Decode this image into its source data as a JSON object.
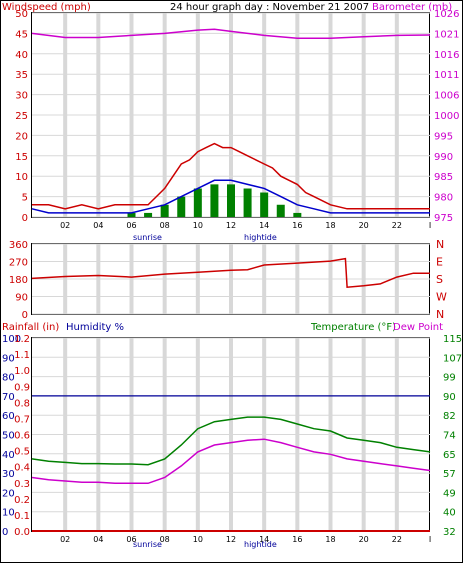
{
  "header": {
    "left_label": "Windspeed (mph)",
    "title": "24 hour graph day : November 21 2007",
    "right_label": "Barometer (mb)"
  },
  "footer_markers": {
    "sunrise": "sunrise",
    "hightide": "hightide"
  },
  "bottom_header": {
    "rainfall_label": "Rainfall (in)",
    "humidity_label": "Humidity %",
    "temperature_label": "Temperature (°F)",
    "dewpoint_label": "Dew Point"
  },
  "x_ticks": [
    "02",
    "04",
    "06",
    "08",
    "10",
    "12",
    "14",
    "16",
    "18",
    "20",
    "22",
    "I"
  ],
  "colors": {
    "wind": "#cc0000",
    "avg_wind": "#0000cc",
    "gust_green": "#008000",
    "barometer": "#cc00cc",
    "direction": "#cc0000",
    "temperature": "#008000",
    "dewpoint": "#cc00cc",
    "humidity": "#000099",
    "rainfall": "#cc0000"
  },
  "chart_data": [
    {
      "type": "line",
      "x_range": [
        0,
        24
      ],
      "left_axis": {
        "ticks": [
          0,
          5,
          10,
          15,
          20,
          25,
          30,
          35,
          40,
          45,
          50
        ],
        "range": [
          0,
          50
        ]
      },
      "right_axis": {
        "ticks": [
          975,
          980,
          985,
          990,
          995,
          1000,
          1006,
          1011,
          1016,
          1021,
          1026
        ],
        "range": [
          975,
          1026
        ]
      },
      "series": [
        {
          "x": [
            0,
            1,
            2,
            3,
            4,
            5,
            6,
            7,
            7.5,
            8,
            8.5,
            9,
            9.5,
            10,
            10.5,
            11,
            11.5,
            12,
            12.5,
            13,
            13.5,
            14,
            14.5,
            15,
            15.5,
            16,
            16.5,
            17,
            18,
            19,
            20,
            21,
            22,
            23,
            24
          ],
          "values": [
            3,
            3,
            2,
            3,
            2,
            3,
            3,
            3,
            5,
            7,
            10,
            13,
            14,
            16,
            17,
            18,
            17,
            17,
            16,
            15,
            14,
            13,
            12,
            10,
            9,
            8,
            6,
            5,
            3,
            2,
            2,
            2,
            2,
            2,
            2
          ]
        },
        {
          "x": [
            0,
            1,
            2,
            3,
            4,
            5,
            6,
            7,
            8,
            9,
            10,
            11,
            12,
            13,
            14,
            15,
            16,
            17,
            18,
            19,
            20,
            21,
            22,
            23,
            24
          ],
          "values": [
            2,
            1,
            1,
            1,
            1,
            1,
            1,
            2,
            3,
            5,
            7,
            9,
            9,
            8,
            7,
            5,
            3,
            2,
            1,
            1,
            1,
            1,
            1,
            1,
            1
          ]
        },
        {
          "x": [
            0,
            1,
            2,
            3,
            4,
            5,
            6,
            7,
            8,
            9,
            10,
            11,
            12,
            13,
            14,
            15,
            16,
            17,
            18,
            19,
            20,
            21,
            22,
            23,
            24
          ],
          "values": [
            0,
            0,
            0,
            0,
            0,
            0,
            1,
            1,
            3,
            5,
            7,
            8,
            8,
            7,
            6,
            3,
            1,
            0,
            0,
            0,
            0,
            0,
            0,
            0,
            0
          ]
        },
        {
          "name": "Barometer",
          "x": [
            0,
            2,
            4,
            6,
            8,
            10,
            11,
            12,
            14,
            16,
            18,
            20,
            22,
            24
          ],
          "values": [
            1021,
            1020,
            1020,
            1020.5,
            1021,
            1021.8,
            1022,
            1021.5,
            1020.5,
            1019.8,
            1019.8,
            1020.2,
            1020.5,
            1020.6
          ]
        }
      ]
    },
    {
      "type": "line",
      "x_range": [
        0,
        24
      ],
      "left_axis": {
        "ticks": [
          0,
          90,
          180,
          270,
          360
        ],
        "range": [
          0,
          360
        ]
      },
      "right_axis_labels": [
        "N",
        "W",
        "S",
        "E",
        "N"
      ],
      "series": [
        {
          "x": [
            0,
            2,
            4,
            6,
            8,
            10,
            12,
            13,
            14,
            16,
            18,
            18.9,
            19,
            20,
            21,
            22,
            23,
            24
          ],
          "values": [
            183,
            193,
            198,
            190,
            205,
            215,
            225,
            228,
            252,
            262,
            272,
            285,
            138,
            145,
            155,
            190,
            210,
            210
          ]
        }
      ]
    },
    {
      "type": "line",
      "x_range": [
        0,
        24
      ],
      "rainfall_axis": {
        "ticks": [
          0.0,
          0.1,
          0.2,
          0.3,
          0.4,
          0.5,
          0.6,
          0.7,
          0.8,
          0.9,
          1.0,
          1.1,
          1.2
        ],
        "range": [
          0,
          1.2
        ]
      },
      "humidity_axis": {
        "ticks": [
          0,
          10,
          20,
          30,
          40,
          50,
          60,
          70,
          80,
          90,
          100
        ],
        "range": [
          0,
          100
        ]
      },
      "temperature_axis": {
        "ticks": [
          32,
          40,
          49,
          57,
          65,
          74,
          82,
          90,
          99,
          107,
          115
        ],
        "range": [
          32,
          115
        ]
      },
      "series": [
        {
          "name": "Humidity %",
          "x": [
            0,
            24
          ],
          "values": [
            70,
            70
          ]
        },
        {
          "name": "Rainfall (in)",
          "x": [
            0,
            24
          ],
          "values": [
            0,
            0
          ]
        },
        {
          "name": "Temperature (°F)",
          "x": [
            0,
            1,
            2,
            3,
            4,
            5,
            6,
            7,
            8,
            9,
            10,
            11,
            12,
            13,
            14,
            15,
            16,
            17,
            18,
            19,
            20,
            21,
            22,
            23,
            24
          ],
          "values": [
            63,
            62,
            61.5,
            61,
            61,
            60.8,
            60.8,
            60.5,
            63,
            69,
            76,
            79,
            80,
            81,
            81,
            80,
            78,
            76,
            75,
            72,
            71,
            70,
            68,
            67,
            66
          ]
        },
        {
          "name": "Dew Point",
          "x": [
            0,
            1,
            2,
            3,
            4,
            5,
            6,
            7,
            8,
            9,
            10,
            11,
            12,
            13,
            14,
            15,
            16,
            17,
            18,
            19,
            20,
            21,
            22,
            23,
            24
          ],
          "values": [
            55,
            54,
            53.5,
            53,
            53,
            52.5,
            52.5,
            52.5,
            55,
            60,
            66,
            69,
            70,
            71,
            71.5,
            70,
            68,
            66,
            65,
            63,
            62,
            61,
            60,
            59,
            58
          ]
        }
      ]
    }
  ]
}
